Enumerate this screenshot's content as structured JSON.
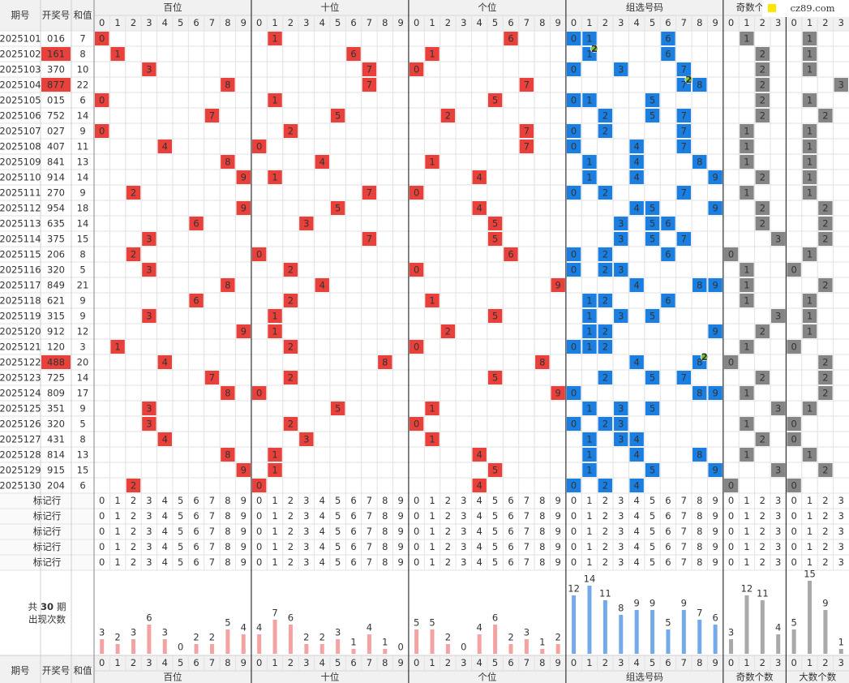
{
  "columns": [
    "期号",
    "开奖号",
    "和值"
  ],
  "sections": [
    {
      "name": "百位",
      "digits": [
        0,
        1,
        2,
        3,
        4,
        5,
        6,
        7,
        8,
        9
      ],
      "counts": [
        3,
        2,
        3,
        6,
        3,
        0,
        2,
        2,
        5,
        4
      ]
    },
    {
      "name": "十位",
      "digits": [
        0,
        1,
        2,
        3,
        4,
        5,
        6,
        7,
        8,
        9
      ],
      "counts": [
        4,
        7,
        6,
        2,
        2,
        3,
        1,
        4,
        1,
        0
      ]
    },
    {
      "name": "个位",
      "digits": [
        0,
        1,
        2,
        3,
        4,
        5,
        6,
        7,
        8,
        9
      ],
      "counts": [
        5,
        5,
        2,
        0,
        4,
        6,
        2,
        3,
        1,
        2
      ]
    },
    {
      "name": "组选号码",
      "digits": [
        0,
        1,
        2,
        3,
        4,
        5,
        6,
        7,
        8,
        9
      ],
      "counts": [
        12,
        14,
        11,
        8,
        9,
        9,
        5,
        9,
        7,
        6
      ]
    },
    {
      "name": "奇数个数",
      "digits": [
        0,
        1,
        2,
        3
      ],
      "counts": [
        3,
        12,
        11,
        4
      ]
    },
    {
      "name": "大数个数",
      "digits": [
        0,
        1,
        2,
        3
      ],
      "counts": [
        5,
        15,
        9,
        1
      ]
    }
  ],
  "rows": [
    {
      "issue": "2025101",
      "number": "016",
      "sum": 7,
      "positions": [
        0,
        1,
        6
      ],
      "group": [
        0,
        1,
        6
      ],
      "odd": 1,
      "big": 1
    },
    {
      "issue": "2025102",
      "number": "161",
      "sum": 8,
      "positions": [
        1,
        6,
        1
      ],
      "group": [
        1,
        6
      ],
      "badge": {
        "digit": 1,
        "count": 2
      },
      "odd": 2,
      "big": 1
    },
    {
      "issue": "2025103",
      "number": "370",
      "sum": 10,
      "positions": [
        3,
        7,
        0
      ],
      "group": [
        0,
        3,
        7
      ],
      "odd": 2,
      "big": 1
    },
    {
      "issue": "2025104",
      "number": "877",
      "sum": 22,
      "positions": [
        8,
        7,
        7
      ],
      "group": [
        7,
        8
      ],
      "badge": {
        "digit": 7,
        "count": 2
      },
      "odd": 2,
      "big": 3
    },
    {
      "issue": "2025105",
      "number": "015",
      "sum": 6,
      "positions": [
        0,
        1,
        5
      ],
      "group": [
        0,
        1,
        5
      ],
      "odd": 2,
      "big": 1
    },
    {
      "issue": "2025106",
      "number": "752",
      "sum": 14,
      "positions": [
        7,
        5,
        2
      ],
      "group": [
        2,
        5,
        7
      ],
      "odd": 2,
      "big": 2
    },
    {
      "issue": "2025107",
      "number": "027",
      "sum": 9,
      "positions": [
        0,
        2,
        7
      ],
      "group": [
        0,
        2,
        7
      ],
      "odd": 1,
      "big": 1
    },
    {
      "issue": "2025108",
      "number": "407",
      "sum": 11,
      "positions": [
        4,
        0,
        7
      ],
      "group": [
        0,
        4,
        7
      ],
      "odd": 1,
      "big": 1
    },
    {
      "issue": "2025109",
      "number": "841",
      "sum": 13,
      "positions": [
        8,
        4,
        1
      ],
      "group": [
        1,
        4,
        8
      ],
      "odd": 1,
      "big": 1
    },
    {
      "issue": "2025110",
      "number": "914",
      "sum": 14,
      "positions": [
        9,
        1,
        4
      ],
      "group": [
        1,
        4,
        9
      ],
      "odd": 2,
      "big": 1
    },
    {
      "issue": "2025111",
      "number": "270",
      "sum": 9,
      "positions": [
        2,
        7,
        0
      ],
      "group": [
        0,
        2,
        7
      ],
      "odd": 1,
      "big": 1
    },
    {
      "issue": "2025112",
      "number": "954",
      "sum": 18,
      "positions": [
        9,
        5,
        4
      ],
      "group": [
        4,
        5,
        9
      ],
      "odd": 2,
      "big": 2
    },
    {
      "issue": "2025113",
      "number": "635",
      "sum": 14,
      "positions": [
        6,
        3,
        5
      ],
      "group": [
        3,
        5,
        6
      ],
      "odd": 2,
      "big": 2
    },
    {
      "issue": "2025114",
      "number": "375",
      "sum": 15,
      "positions": [
        3,
        7,
        5
      ],
      "group": [
        3,
        5,
        7
      ],
      "odd": 3,
      "big": 2
    },
    {
      "issue": "2025115",
      "number": "206",
      "sum": 8,
      "positions": [
        2,
        0,
        6
      ],
      "group": [
        0,
        2,
        6
      ],
      "odd": 0,
      "big": 1
    },
    {
      "issue": "2025116",
      "number": "320",
      "sum": 5,
      "positions": [
        3,
        2,
        0
      ],
      "group": [
        0,
        2,
        3
      ],
      "odd": 1,
      "big": 0
    },
    {
      "issue": "2025117",
      "number": "849",
      "sum": 21,
      "positions": [
        8,
        4,
        9
      ],
      "group": [
        4,
        8,
        9
      ],
      "odd": 1,
      "big": 2
    },
    {
      "issue": "2025118",
      "number": "621",
      "sum": 9,
      "positions": [
        6,
        2,
        1
      ],
      "group": [
        1,
        2,
        6
      ],
      "odd": 1,
      "big": 1
    },
    {
      "issue": "2025119",
      "number": "315",
      "sum": 9,
      "positions": [
        3,
        1,
        5
      ],
      "group": [
        1,
        3,
        5
      ],
      "odd": 3,
      "big": 1
    },
    {
      "issue": "2025120",
      "number": "912",
      "sum": 12,
      "positions": [
        9,
        1,
        2
      ],
      "group": [
        1,
        2,
        9
      ],
      "odd": 2,
      "big": 1
    },
    {
      "issue": "2025121",
      "number": "120",
      "sum": 3,
      "positions": [
        1,
        2,
        0
      ],
      "group": [
        0,
        1,
        2
      ],
      "odd": 1,
      "big": 0
    },
    {
      "issue": "2025122",
      "number": "488",
      "sum": 20,
      "positions": [
        4,
        8,
        8
      ],
      "group": [
        4,
        8
      ],
      "badge": {
        "digit": 8,
        "count": 2
      },
      "odd": 0,
      "big": 2
    },
    {
      "issue": "2025123",
      "number": "725",
      "sum": 14,
      "positions": [
        7,
        2,
        5
      ],
      "group": [
        2,
        5,
        7
      ],
      "odd": 2,
      "big": 2
    },
    {
      "issue": "2025124",
      "number": "809",
      "sum": 17,
      "positions": [
        8,
        0,
        9
      ],
      "group": [
        0,
        8,
        9
      ],
      "odd": 1,
      "big": 2
    },
    {
      "issue": "2025125",
      "number": "351",
      "sum": 9,
      "positions": [
        3,
        5,
        1
      ],
      "group": [
        1,
        3,
        5
      ],
      "odd": 3,
      "big": 1
    },
    {
      "issue": "2025126",
      "number": "320",
      "sum": 5,
      "positions": [
        3,
        2,
        0
      ],
      "group": [
        0,
        2,
        3
      ],
      "odd": 1,
      "big": 0
    },
    {
      "issue": "2025127",
      "number": "431",
      "sum": 8,
      "positions": [
        4,
        3,
        1
      ],
      "group": [
        1,
        3,
        4
      ],
      "odd": 2,
      "big": 0
    },
    {
      "issue": "2025128",
      "number": "814",
      "sum": 13,
      "positions": [
        8,
        1,
        4
      ],
      "group": [
        1,
        4,
        8
      ],
      "odd": 1,
      "big": 1
    },
    {
      "issue": "2025129",
      "number": "915",
      "sum": 15,
      "positions": [
        9,
        1,
        5
      ],
      "group": [
        1,
        5,
        9
      ],
      "odd": 3,
      "big": 2
    },
    {
      "issue": "2025130",
      "number": "204",
      "sum": 6,
      "positions": [
        2,
        0,
        4
      ],
      "group": [
        0,
        2,
        4
      ],
      "odd": 0,
      "big": 0
    }
  ],
  "marker_rows": [
    "标记行",
    "标记行",
    "标记行",
    "标记行",
    "标记行"
  ],
  "summary": {
    "prefix": "共",
    "count": 30,
    "suffix": "期",
    "label": "出现次数"
  },
  "watermark": "cz89.com"
}
